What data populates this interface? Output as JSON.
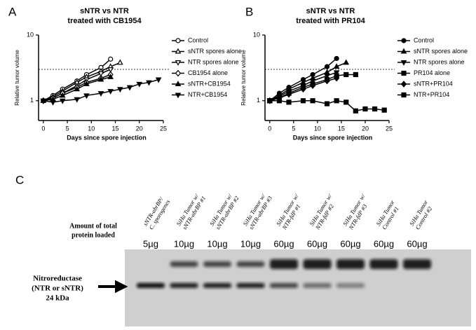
{
  "chart_data": [
    {
      "type": "line",
      "panel": "A",
      "title": [
        "sNTR vs NTR",
        "treated with CB1954"
      ],
      "x_label": "Days since spore injection",
      "y_label": "Relative tumor volume",
      "xlim": [
        -1,
        25
      ],
      "xticks": [
        0,
        5,
        10,
        15,
        20,
        25
      ],
      "ylim": [
        0.5,
        10
      ],
      "yticks": [
        1,
        10
      ],
      "log_y": true,
      "hline": 3,
      "legend": "right",
      "series": [
        {
          "name": "Control",
          "color": "#000000",
          "marker": "circle-open",
          "x": [
            0,
            2,
            4,
            7,
            9,
            12,
            14
          ],
          "values": [
            1,
            1.2,
            1.5,
            2,
            2.5,
            3.2,
            4.3
          ]
        },
        {
          "name": "sNTR spores alone",
          "color": "#000000",
          "marker": "triangle-up-open",
          "x": [
            0,
            2,
            4,
            7,
            9,
            12,
            14,
            16
          ],
          "values": [
            1,
            1.15,
            1.4,
            1.9,
            2.3,
            2.8,
            3.3,
            3.8
          ]
        },
        {
          "name": "NTR spores alone",
          "color": "#000000",
          "marker": "triangle-down-open",
          "x": [
            0,
            2,
            4,
            7,
            9,
            12,
            14
          ],
          "values": [
            1,
            1.1,
            1.3,
            1.7,
            2.1,
            2.6,
            3.0
          ]
        },
        {
          "name": "CB1954 alone",
          "color": "#000000",
          "marker": "diamond-open",
          "x": [
            0,
            2,
            4,
            7,
            9,
            12,
            14
          ],
          "values": [
            1,
            1.1,
            1.3,
            1.6,
            1.9,
            2.2,
            2.5
          ]
        },
        {
          "name": "sNTR+CB1954",
          "color": "#000000",
          "marker": "triangle-up",
          "x": [
            0,
            2,
            4,
            7,
            9,
            12,
            14
          ],
          "values": [
            1,
            1.05,
            1.2,
            1.5,
            1.8,
            2.1,
            2.3
          ]
        },
        {
          "name": "NTR+CB1954",
          "color": "#000000",
          "marker": "triangle-down",
          "x": [
            0,
            2,
            4,
            7,
            9,
            12,
            14,
            16,
            18,
            20,
            22,
            24
          ],
          "values": [
            1,
            0.95,
            1.0,
            1.05,
            1.2,
            1.3,
            1.4,
            1.5,
            1.6,
            1.8,
            1.9,
            2.1
          ]
        }
      ]
    },
    {
      "type": "line",
      "panel": "B",
      "title": [
        "sNTR vs NTR",
        "treated with PR104"
      ],
      "x_label": "Days since spore injection",
      "y_label": "Relative tumor volume",
      "xlim": [
        -1,
        25
      ],
      "xticks": [
        0,
        5,
        10,
        15,
        20,
        25
      ],
      "ylim": [
        0.5,
        10
      ],
      "yticks": [
        1,
        10
      ],
      "log_y": true,
      "hline": 3,
      "legend": "right",
      "series": [
        {
          "name": "Control",
          "color": "#000000",
          "marker": "circle",
          "x": [
            0,
            2,
            4,
            7,
            9,
            12,
            14
          ],
          "values": [
            1,
            1.3,
            1.6,
            2.1,
            2.5,
            3.3,
            4.4
          ]
        },
        {
          "name": "sNTR spores alone",
          "color": "#000000",
          "marker": "triangle-up",
          "x": [
            0,
            2,
            4,
            7,
            9,
            12,
            14,
            16
          ],
          "values": [
            1,
            1.2,
            1.5,
            1.9,
            2.2,
            2.7,
            3.3,
            3.8
          ]
        },
        {
          "name": "NTR spores alone",
          "color": "#000000",
          "marker": "triangle-down",
          "x": [
            0,
            2,
            4,
            7,
            9,
            12,
            14
          ],
          "values": [
            1,
            1.15,
            1.4,
            1.7,
            2.0,
            2.4,
            2.7
          ]
        },
        {
          "name": "PR104 alone",
          "color": "#000000",
          "marker": "square",
          "x": [
            0,
            2,
            4,
            7,
            9,
            12,
            14,
            16,
            18
          ],
          "values": [
            1,
            1.1,
            1.3,
            1.6,
            1.8,
            2.1,
            2.4,
            2.5,
            2.5
          ]
        },
        {
          "name": "sNTR+PR104",
          "color": "#000000",
          "marker": "diamond",
          "x": [
            0,
            2,
            4,
            7,
            9,
            12,
            14
          ],
          "values": [
            1,
            1.1,
            1.25,
            1.5,
            1.7,
            2.0,
            2.2
          ]
        },
        {
          "name": "NTR+PR104",
          "color": "#000000",
          "marker": "square",
          "x": [
            0,
            2,
            4,
            7,
            9,
            12,
            14,
            16,
            18,
            20,
            22,
            24
          ],
          "values": [
            1,
            1.0,
            0.95,
            1.0,
            1.0,
            0.9,
            1.0,
            0.95,
            0.7,
            0.75,
            0.75,
            0.72
          ]
        }
      ]
    }
  ],
  "blot": {
    "panel": "C",
    "amount_label": [
      "Amount of total",
      "protein loaded"
    ],
    "target_label": [
      "Nitroreductase",
      "(NTR or sNTR)",
      "24 kDa"
    ],
    "lanes": [
      {
        "label": [
          "sNTR-abrBP/",
          "C. sporogenes"
        ],
        "amount": "5µg"
      },
      {
        "label": [
          "SiHa Tumor w/",
          "sNTR-abrBP #1"
        ],
        "amount": "10µg"
      },
      {
        "label": [
          "SiHa Tumor w/",
          "sNTR-abrBP #2"
        ],
        "amount": "10µg"
      },
      {
        "label": [
          "SiHa Tumor w/",
          "sNTR-abrBP #3"
        ],
        "amount": "10µg"
      },
      {
        "label": [
          "SiHa Tumor w/",
          "NTR-fdP #1"
        ],
        "amount": "60µg"
      },
      {
        "label": [
          "SiHa Tumor w/",
          "NTR-fdP #2"
        ],
        "amount": "60µg"
      },
      {
        "label": [
          "SiHa Tumor w/",
          "NTR-fdP #3"
        ],
        "amount": "60µg"
      },
      {
        "label": [
          "SiHa Tumor",
          "Control #1"
        ],
        "amount": "60µg"
      },
      {
        "label": [
          "SiHa Tumor",
          "Control #2"
        ],
        "amount": "60µg"
      }
    ]
  }
}
